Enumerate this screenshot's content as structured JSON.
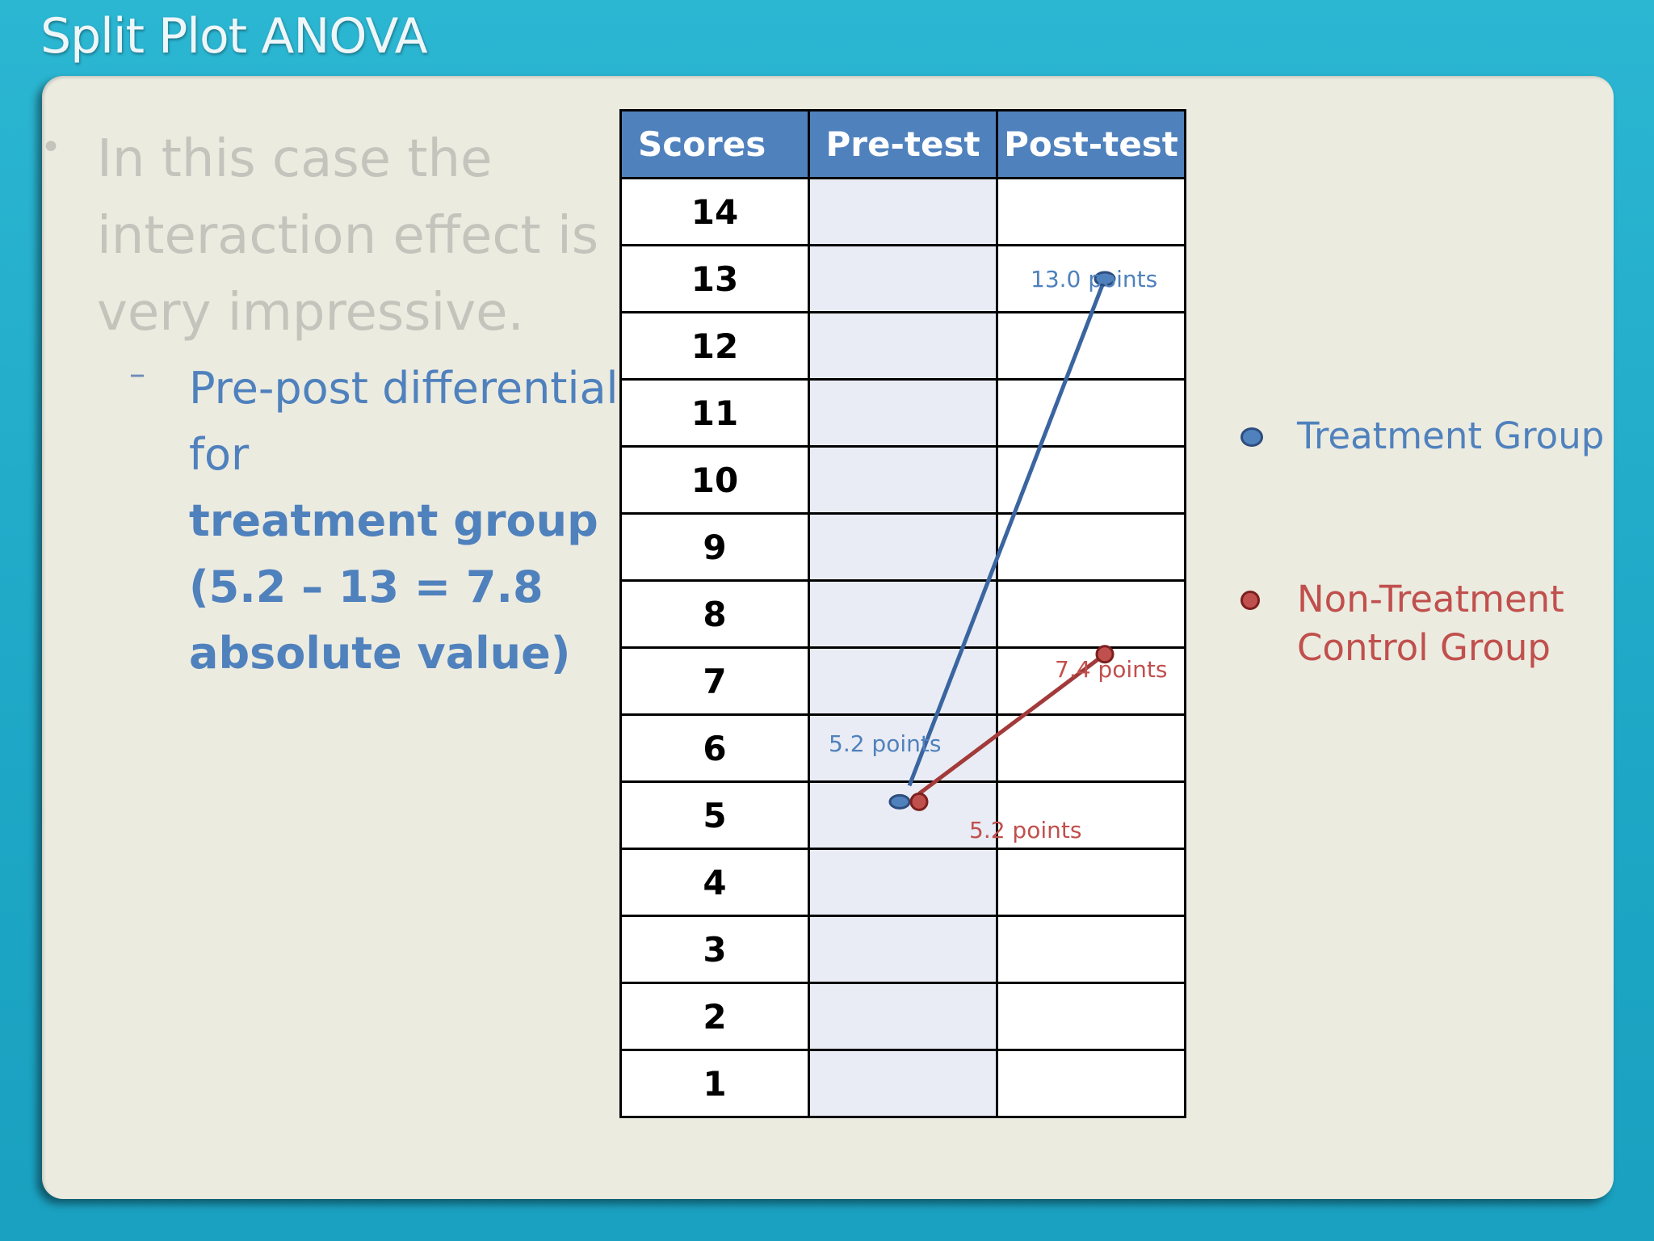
{
  "slide": {
    "title": "Split Plot ANOVA"
  },
  "bullets": {
    "main_text": "In this case the interaction effect is very impressive.",
    "sub_dash": "–",
    "sub_text_plain": "Pre-post differential for",
    "sub_text_bold": "treatment group (5.2 – 13 = 7.8 absolute value)"
  },
  "table": {
    "headers": [
      "Scores",
      "Pre-test",
      "Post-test"
    ],
    "scores": [
      "14",
      "13",
      "12",
      "11",
      "10",
      "9",
      "8",
      "7",
      "6",
      "5",
      "4",
      "3",
      "2",
      "1"
    ]
  },
  "legend": {
    "treatment": "Treatment Group",
    "control": "Non-Treatment Control Group"
  },
  "colors": {
    "treatment": "#4f81bd",
    "control": "#c0504d",
    "header_fill": "#4f81bd",
    "slide_bg": "#20aecb",
    "panel_bg": "#ecebe0"
  },
  "chart_data": {
    "type": "line",
    "x": [
      "Pre-test",
      "Post-test"
    ],
    "ylim": [
      1,
      14
    ],
    "grid": true,
    "legend_position": "right",
    "series": [
      {
        "name": "Treatment Group",
        "values": [
          5.2,
          13.0
        ],
        "point_labels": [
          "5.2 points",
          "13.0 points"
        ],
        "color": "#4f81bd"
      },
      {
        "name": "Non-Treatment Control Group",
        "values": [
          5.2,
          7.4
        ],
        "point_labels": [
          "5.2 points",
          "7.4 points"
        ],
        "color": "#c0504d"
      }
    ]
  }
}
